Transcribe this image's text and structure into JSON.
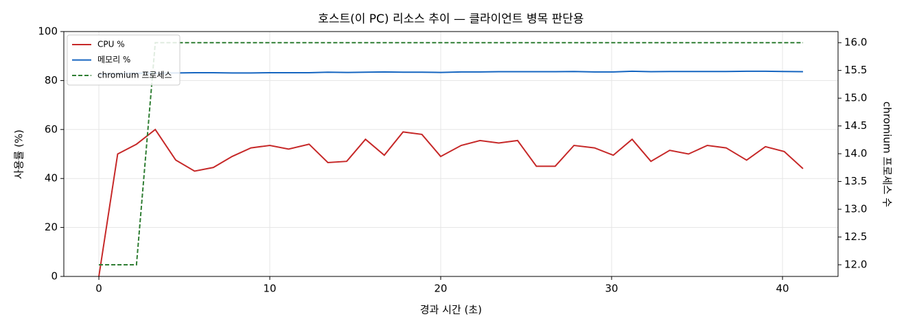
{
  "chart_data": {
    "type": "line",
    "title": "호스트(이 PC) 리소스 추이 — 클라이언트 병목 판단용",
    "x_label": "경과 시간 (초)",
    "y_label": "사용률 (%)",
    "y2_label": "chromium 프로세스 수",
    "x": [
      0,
      1.1,
      2.2,
      3.3,
      4.5,
      5.6,
      6.7,
      7.8,
      8.9,
      10.0,
      11.1,
      12.3,
      13.4,
      14.5,
      15.6,
      16.7,
      17.8,
      18.9,
      20.0,
      21.2,
      22.3,
      23.4,
      24.5,
      25.6,
      26.7,
      27.8,
      29.0,
      30.1,
      31.2,
      32.3,
      33.4,
      34.5,
      35.6,
      36.7,
      37.9,
      39.0,
      40.1,
      41.2
    ],
    "series": [
      {
        "name": "CPU %",
        "color": "#c62828",
        "linestyle": "solid",
        "axis": "y",
        "values": [
          0,
          50,
          54,
          60,
          47.5,
          43,
          44.5,
          49,
          52.5,
          53.5,
          52,
          54,
          46.5,
          47,
          56,
          49.5,
          59,
          58,
          49,
          53.5,
          55.5,
          54.5,
          55.5,
          45,
          45,
          53.5,
          52.5,
          49.5,
          56,
          47,
          51.5,
          50,
          53.5,
          52.5,
          47.5,
          53,
          51,
          44
        ]
      },
      {
        "name": "메모리 %",
        "color": "#1565c0",
        "linestyle": "solid",
        "axis": "y",
        "values": [
          82.6,
          82.8,
          83.0,
          83.0,
          83.1,
          83.2,
          83.2,
          83.1,
          83.1,
          83.2,
          83.2,
          83.2,
          83.4,
          83.3,
          83.4,
          83.5,
          83.4,
          83.4,
          83.3,
          83.5,
          83.5,
          83.6,
          83.6,
          83.6,
          83.6,
          83.7,
          83.5,
          83.5,
          83.8,
          83.6,
          83.7,
          83.7,
          83.7,
          83.7,
          83.8,
          83.8,
          83.7,
          83.6
        ]
      },
      {
        "name": "chromium 프로세스",
        "color": "#2e7d32",
        "linestyle": "dashed",
        "axis": "y2",
        "values": [
          12,
          12,
          12,
          16,
          16,
          16,
          16,
          16,
          16,
          16,
          16,
          16,
          16,
          16,
          16,
          16,
          16,
          16,
          16,
          16,
          16,
          16,
          16,
          16,
          16,
          16,
          16,
          16,
          16,
          16,
          16,
          16,
          16,
          16,
          16,
          16,
          16,
          16
        ]
      }
    ],
    "xlim": [
      -2.05,
      43.25
    ],
    "xticks": [
      0,
      10,
      20,
      30,
      40
    ],
    "ylim": [
      0,
      100
    ],
    "yticks": [
      0,
      20,
      40,
      60,
      80,
      100
    ],
    "y2lim": [
      11.79,
      16.2
    ],
    "y2ticks": [
      {
        "value": 12,
        "label": "12.0"
      },
      12.5,
      {
        "value": 13,
        "label": "13.0"
      },
      13.5,
      {
        "value": 14,
        "label": "14.0"
      },
      14.5,
      {
        "value": 15,
        "label": "15.0"
      },
      15.5,
      {
        "value": 16,
        "label": "16.0"
      }
    ],
    "grid": true,
    "legend": "upper-left"
  }
}
